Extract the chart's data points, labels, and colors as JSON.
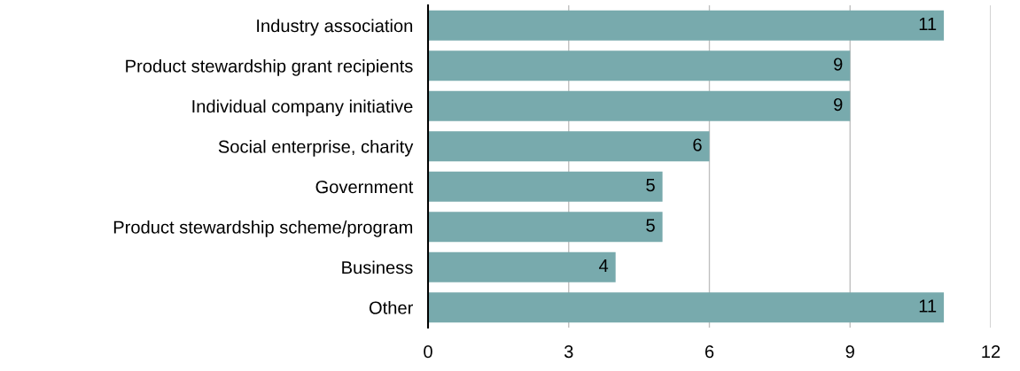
{
  "chart_data": {
    "type": "bar",
    "orientation": "horizontal",
    "categories": [
      "Industry association",
      "Product stewardship grant recipients",
      "Individual company initiative",
      "Social enterprise, charity",
      "Government",
      "Product stewardship scheme/program",
      "Business",
      "Other"
    ],
    "values": [
      11,
      9,
      9,
      6,
      5,
      5,
      4,
      11
    ],
    "color": "#78aaad",
    "xlim": [
      0,
      12
    ],
    "xticks": [
      0,
      3,
      6,
      9,
      12
    ],
    "grid": "x",
    "data_labels": true
  }
}
